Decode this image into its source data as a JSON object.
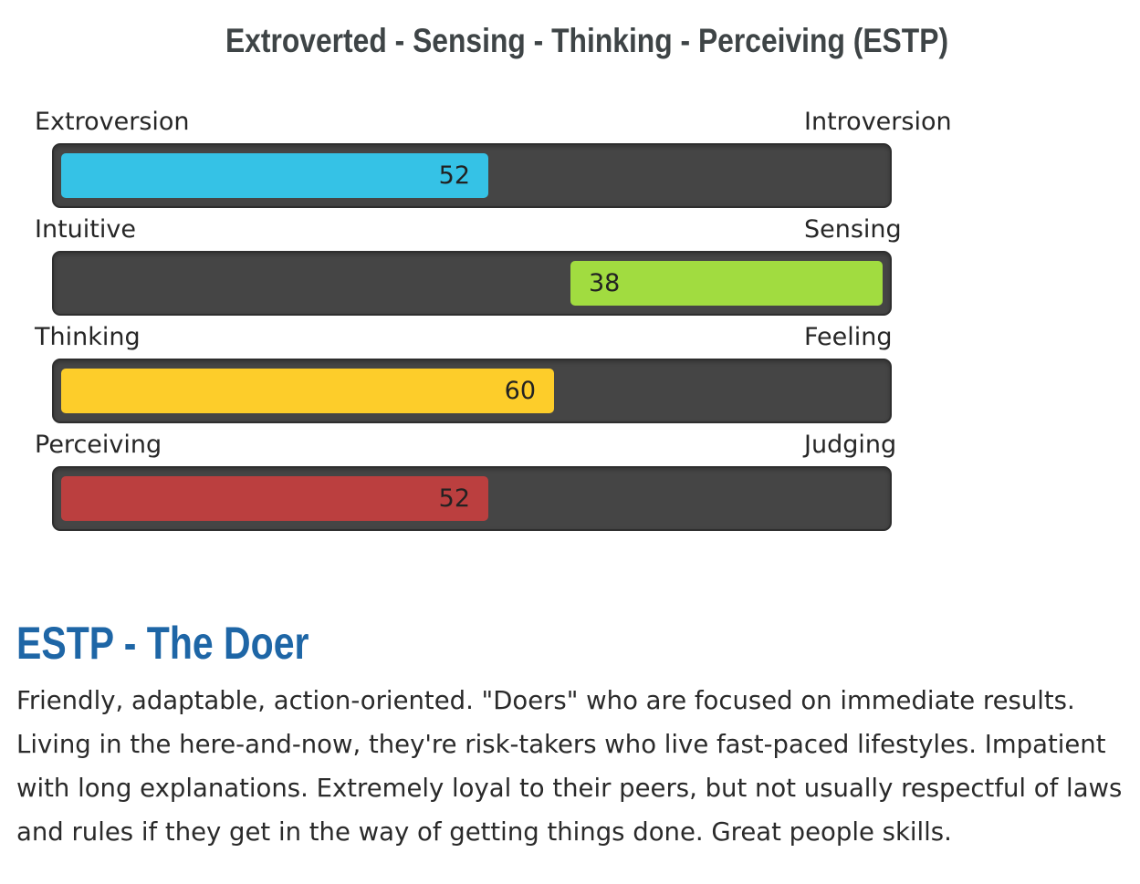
{
  "title": "Extroverted - Sensing - Thinking - Perceiving (ESTP)",
  "dimensions": [
    {
      "left_label": "Extroversion",
      "right_label": "Introversion",
      "value": "52",
      "percent": 52,
      "side": "left",
      "color": "#35c2e6"
    },
    {
      "left_label": "Intuitive",
      "right_label": "Sensing",
      "value": "38",
      "percent": 38,
      "side": "right",
      "color": "#a1dc40"
    },
    {
      "left_label": "Thinking",
      "right_label": "Feeling",
      "value": "60",
      "percent": 60,
      "side": "left",
      "color": "#fdcd2a"
    },
    {
      "left_label": "Perceiving",
      "right_label": "Judging",
      "value": "52",
      "percent": 52,
      "side": "left",
      "color": "#bb3f3f"
    }
  ],
  "type_heading": "ESTP - The Doer",
  "type_description": "Friendly, adaptable, action-oriented. \"Doers\" who are focused on immediate results. Living in the here-and-now, they're risk-takers who live fast-paced lifestyles. Impatient with long explanations. Extremely loyal to their peers, but not usually respectful of laws and rules if they get in the way of getting things done. Great people skills."
}
